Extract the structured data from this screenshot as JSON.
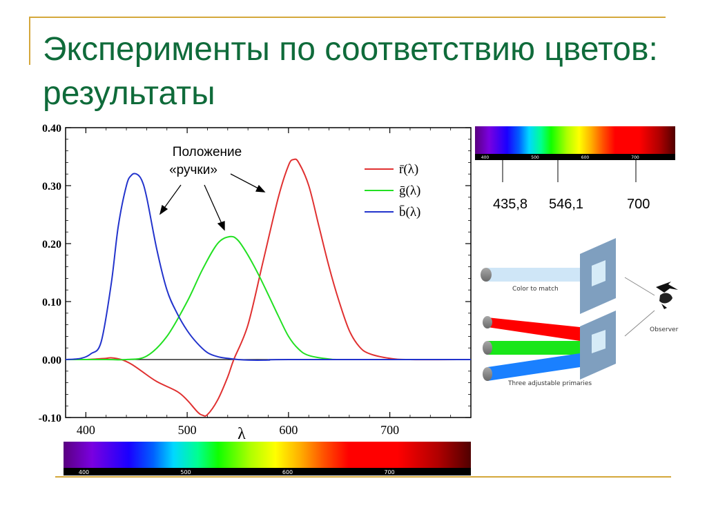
{
  "slide": {
    "title": "Эксперименты по соответствию цветов: результаты"
  },
  "chart_data": {
    "type": "line",
    "xlabel": "λ",
    "ylabel": "",
    "xlim": [
      380,
      780
    ],
    "ylim": [
      -0.1,
      0.4
    ],
    "x_ticks": [
      "400",
      "500",
      "600",
      "700"
    ],
    "y_ticks": [
      "0.40",
      "0.30",
      "0.20",
      "0.10",
      "0.00",
      "-0.10"
    ],
    "legend_position": "top-right",
    "series": [
      {
        "name": "r̄(λ)",
        "color": "#e03030",
        "points": [
          [
            380,
            0
          ],
          [
            400,
            0
          ],
          [
            410,
            0.001
          ],
          [
            420,
            0.002
          ],
          [
            425,
            0.003
          ],
          [
            435,
            0
          ],
          [
            445,
            -0.008
          ],
          [
            455,
            -0.02
          ],
          [
            470,
            -0.038
          ],
          [
            490,
            -0.055
          ],
          [
            500,
            -0.07
          ],
          [
            510,
            -0.09
          ],
          [
            515,
            -0.096
          ],
          [
            520,
            -0.095
          ],
          [
            530,
            -0.07
          ],
          [
            540,
            -0.03
          ],
          [
            546,
            0
          ],
          [
            560,
            0.06
          ],
          [
            575,
            0.17
          ],
          [
            590,
            0.28
          ],
          [
            600,
            0.335
          ],
          [
            605,
            0.345
          ],
          [
            610,
            0.34
          ],
          [
            620,
            0.3
          ],
          [
            630,
            0.23
          ],
          [
            640,
            0.16
          ],
          [
            650,
            0.1
          ],
          [
            660,
            0.05
          ],
          [
            670,
            0.022
          ],
          [
            680,
            0.01
          ],
          [
            700,
            0.002
          ],
          [
            720,
            0
          ],
          [
            780,
            0
          ]
        ]
      },
      {
        "name": "ḡ(λ)",
        "color": "#22e022",
        "points": [
          [
            380,
            0
          ],
          [
            420,
            0
          ],
          [
            440,
            0
          ],
          [
            460,
            0.006
          ],
          [
            480,
            0.04
          ],
          [
            500,
            0.1
          ],
          [
            515,
            0.155
          ],
          [
            530,
            0.2
          ],
          [
            542,
            0.212
          ],
          [
            550,
            0.206
          ],
          [
            560,
            0.18
          ],
          [
            570,
            0.148
          ],
          [
            580,
            0.112
          ],
          [
            590,
            0.075
          ],
          [
            600,
            0.04
          ],
          [
            610,
            0.018
          ],
          [
            620,
            0.007
          ],
          [
            640,
            0.001
          ],
          [
            660,
            0
          ],
          [
            780,
            0
          ]
        ]
      },
      {
        "name": "b̄(λ)",
        "color": "#2233cc",
        "points": [
          [
            380,
            0
          ],
          [
            395,
            0.002
          ],
          [
            405,
            0.01
          ],
          [
            415,
            0.03
          ],
          [
            425,
            0.13
          ],
          [
            432,
            0.23
          ],
          [
            440,
            0.3
          ],
          [
            445,
            0.318
          ],
          [
            450,
            0.32
          ],
          [
            455,
            0.31
          ],
          [
            460,
            0.28
          ],
          [
            470,
            0.19
          ],
          [
            480,
            0.12
          ],
          [
            490,
            0.08
          ],
          [
            500,
            0.05
          ],
          [
            510,
            0.028
          ],
          [
            520,
            0.012
          ],
          [
            530,
            0.005
          ],
          [
            540,
            0.002
          ],
          [
            550,
            0
          ],
          [
            560,
            -0.001
          ],
          [
            580,
            -0.001
          ],
          [
            600,
            0
          ],
          [
            780,
            0
          ]
        ]
      }
    ]
  },
  "annotations": {
    "knob_line1": "Положение",
    "knob_line2": "«ручки»"
  },
  "bottom_spectrum": {
    "ticks": [
      "400",
      "500",
      "600",
      "700"
    ]
  },
  "right_spectrum": {
    "ticks": [
      "400",
      "500",
      "600",
      "700"
    ],
    "primaries": [
      "435,8",
      "546,1",
      "700"
    ]
  },
  "experiment": {
    "color_to_match": "Color to match",
    "observer": "Observer",
    "primaries_label": "Three adjustable primaries"
  }
}
